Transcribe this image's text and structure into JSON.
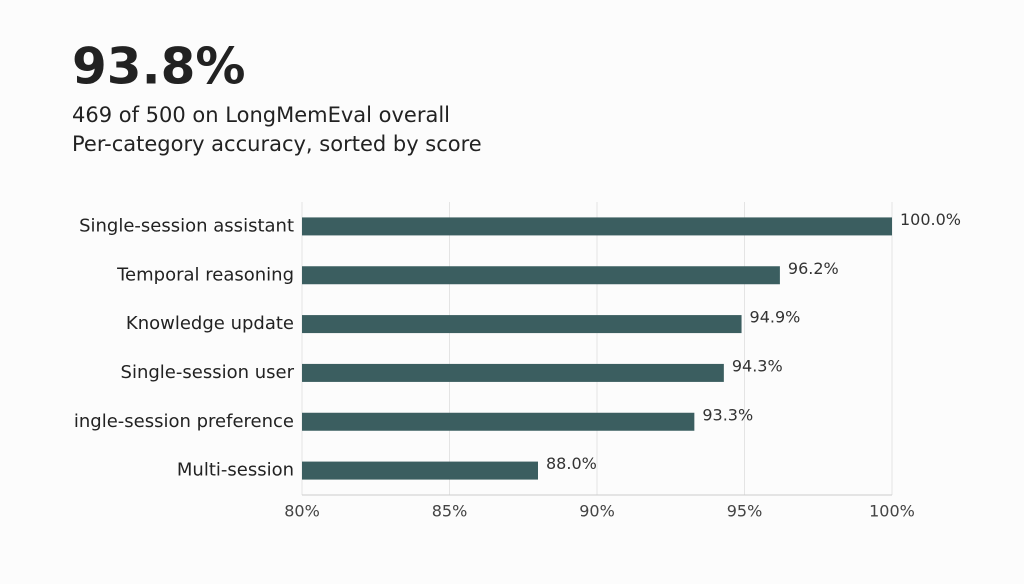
{
  "chart_data": {
    "type": "bar",
    "orientation": "horizontal",
    "title": "93.8%",
    "subtitle": [
      "469 of 500 on LongMemEval overall",
      "Per-category accuracy, sorted by score"
    ],
    "categories": [
      "Single-session assistant",
      "Temporal reasoning",
      "Knowledge update",
      "Single-session user",
      "ingle-session preference",
      "Multi-session"
    ],
    "values": [
      100.0,
      96.2,
      94.9,
      94.3,
      93.3,
      88.0
    ],
    "value_labels": [
      "100.0%",
      "96.2%",
      "94.9%",
      "94.3%",
      "93.3%",
      "88.0%"
    ],
    "color": "#3b5e60",
    "xlim": [
      80,
      100
    ],
    "xticks": [
      {
        "value": 80,
        "label": "80%"
      },
      {
        "value": 85,
        "label": "85%"
      },
      {
        "value": 90,
        "label": "90%"
      },
      {
        "value": 95,
        "label": "95%"
      },
      {
        "value": 100,
        "label": "100%"
      }
    ],
    "grid": true
  }
}
